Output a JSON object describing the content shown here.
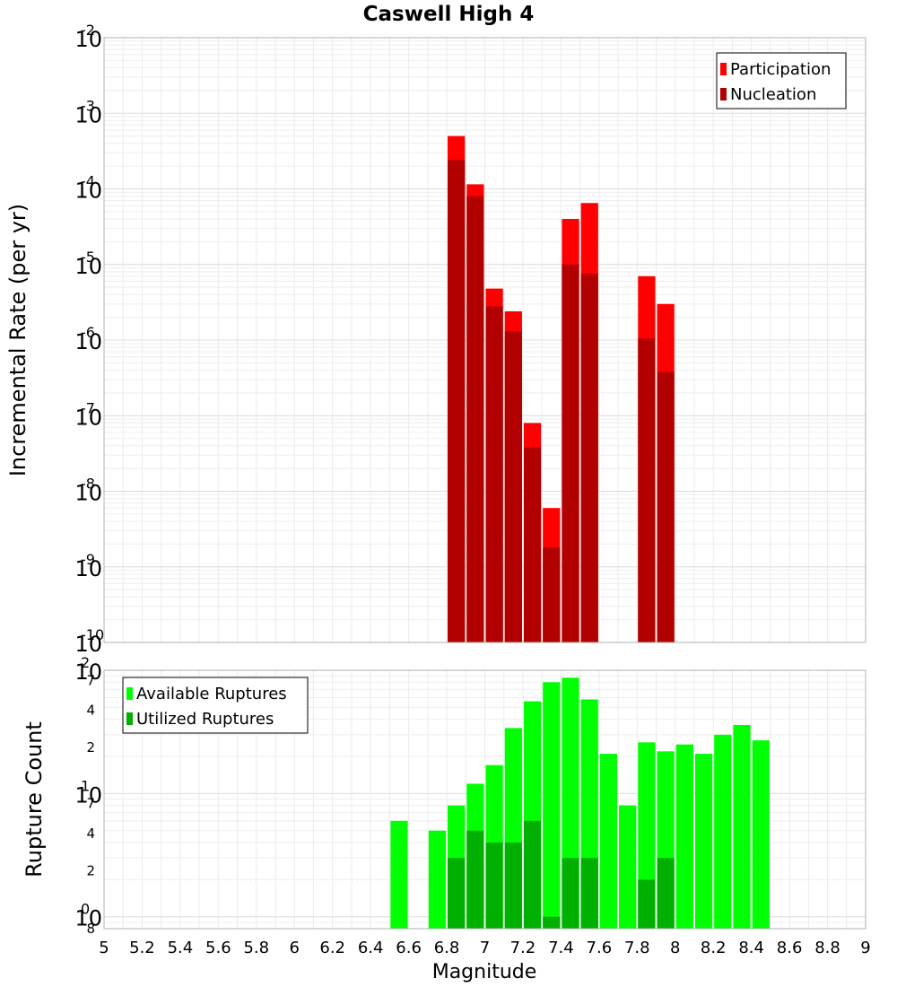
{
  "chart_data": [
    {
      "type": "bar",
      "title": "Caswell High 4",
      "xlabel": "",
      "ylabel": "Incremental Rate (per yr)",
      "yscale": "log",
      "xlim": [
        5,
        9
      ],
      "ylim": [
        1e-10,
        0.01
      ],
      "grid": true,
      "legend_position": "top-right",
      "bin_width": 0.1,
      "y_tick_exponents": [
        "-2",
        "-3",
        "-4",
        "-5",
        "-6",
        "-7",
        "-8",
        "-9",
        "-10"
      ],
      "y_tick_base": "10",
      "series": [
        {
          "name": "Participation",
          "color": "#ff0000",
          "x": [
            6.85,
            6.95,
            7.05,
            7.15,
            7.25,
            7.35,
            7.45,
            7.55,
            7.85,
            7.95
          ],
          "values": [
            0.0005,
            0.000115,
            4.8e-06,
            2.4e-06,
            8e-08,
            6e-09,
            4e-05,
            6.5e-05,
            7e-06,
            3e-06
          ]
        },
        {
          "name": "Nucleation",
          "color": "#b20000",
          "x": [
            6.85,
            6.95,
            7.05,
            7.15,
            7.25,
            7.35,
            7.45,
            7.55,
            7.85,
            7.95
          ],
          "values": [
            0.00024,
            8e-05,
            2.8e-06,
            1.3e-06,
            3.8e-08,
            1.8e-09,
            1e-05,
            7.5e-06,
            1.05e-06,
            3.8e-07
          ]
        }
      ]
    },
    {
      "type": "bar",
      "title": "",
      "xlabel": "Magnitude",
      "ylabel": "Rupture Count",
      "yscale": "log",
      "xlim": [
        5,
        9
      ],
      "ylim": [
        0.8,
        100
      ],
      "grid": true,
      "legend_position": "top-left",
      "bin_width": 0.1,
      "x_ticks": [
        "5",
        "5.2",
        "5.4",
        "5.6",
        "5.8",
        "6",
        "6.2",
        "6.4",
        "6.6",
        "6.8",
        "7",
        "7.2",
        "7.4",
        "7.6",
        "7.8",
        "8",
        "8.2",
        "8.4",
        "8.6",
        "8.8",
        "9"
      ],
      "y_major_ticks": [
        {
          "base": "10",
          "exp": "2",
          "value": 100
        },
        {
          "base": "10",
          "exp": "1",
          "value": 10
        },
        {
          "base": "10",
          "exp": "0",
          "value": 1
        }
      ],
      "y_minor_ticks": [
        {
          "label": "7",
          "value": 70
        },
        {
          "label": "4",
          "value": 40
        },
        {
          "label": "2",
          "value": 20
        },
        {
          "label": "7",
          "value": 7
        },
        {
          "label": "4",
          "value": 4
        },
        {
          "label": "2",
          "value": 2
        },
        {
          "label": "8",
          "value": 0.8
        }
      ],
      "series": [
        {
          "name": "Available Ruptures",
          "color": "#00ff00",
          "x": [
            6.55,
            6.75,
            6.85,
            6.95,
            7.05,
            7.15,
            7.25,
            7.35,
            7.45,
            7.55,
            7.65,
            7.75,
            7.85,
            7.95,
            8.05,
            8.15,
            8.25,
            8.35,
            8.45
          ],
          "values": [
            6,
            5,
            8,
            12,
            17,
            34,
            56,
            80,
            87,
            58,
            21,
            8,
            26,
            22,
            25,
            21,
            30,
            36,
            27
          ]
        },
        {
          "name": "Utilized Ruptures",
          "color": "#00b000",
          "x": [
            6.85,
            6.95,
            7.05,
            7.15,
            7.25,
            7.35,
            7.45,
            7.55,
            7.85,
            7.95
          ],
          "values": [
            3,
            5,
            4,
            4,
            6,
            1,
            3,
            3,
            2,
            3
          ]
        }
      ]
    }
  ]
}
